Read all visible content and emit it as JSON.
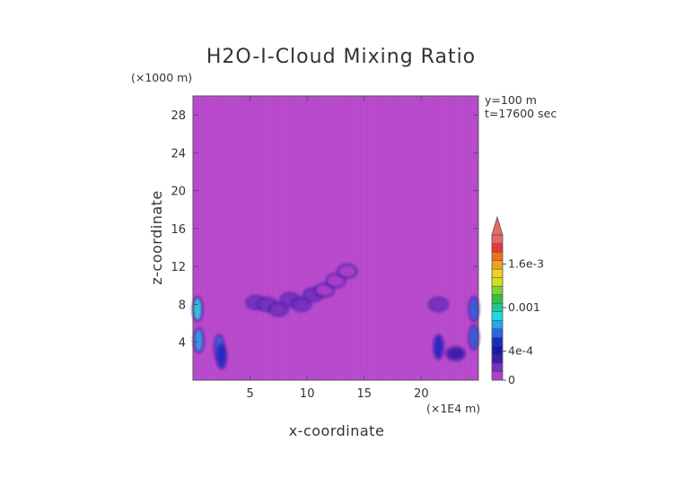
{
  "chart_data": {
    "type": "heatmap",
    "title": "H2O-I-Cloud Mixing Ratio",
    "xlabel": "x-coordinate",
    "ylabel": "z-coordinate",
    "x_unit": "(×1E4 m)",
    "y_unit": "(×1000 m)",
    "annotations": [
      "y=100 m",
      "t=17600 sec"
    ],
    "xlim": [
      0,
      25
    ],
    "ylim": [
      0,
      30
    ],
    "x_ticks": [
      5,
      10,
      15,
      20
    ],
    "y_ticks": [
      4,
      8,
      12,
      16,
      20,
      24,
      28
    ],
    "colorbar": {
      "min": 0,
      "max": 0.002,
      "tick_labels": [
        "0",
        "4e-4",
        "0.001",
        "1.6e-3"
      ],
      "tick_values": [
        0,
        0.0004,
        0.001,
        0.0016
      ],
      "colors": [
        "#b040c8",
        "#7a30c0",
        "#3c1ea8",
        "#1a1aa0",
        "#1c2ac8",
        "#2a68e0",
        "#22a8e8",
        "#20d8e0",
        "#20c890",
        "#30c040",
        "#80d030",
        "#d0e020",
        "#f0d020",
        "#f0a020",
        "#f07020",
        "#e83838",
        "#e86868"
      ],
      "extend": "max"
    },
    "features": [
      {
        "x": 0.4,
        "z": 7.5,
        "value": 0.0009
      },
      {
        "x": 0.5,
        "z": 4.2,
        "value": 0.0008
      },
      {
        "x": 2.3,
        "z": 3.5,
        "value": 0.0006
      },
      {
        "x": 2.5,
        "z": 2.5,
        "value": 0.0005
      },
      {
        "x": 5.5,
        "z": 8.2,
        "value": 0.0002
      },
      {
        "x": 6.5,
        "z": 8.0,
        "value": 0.0002
      },
      {
        "x": 7.5,
        "z": 7.5,
        "value": 0.0002
      },
      {
        "x": 8.5,
        "z": 8.5,
        "value": 0.00015
      },
      {
        "x": 9.5,
        "z": 8.0,
        "value": 0.0002
      },
      {
        "x": 10.5,
        "z": 9.0,
        "value": 0.00015
      },
      {
        "x": 11.5,
        "z": 9.5,
        "value": 0.0001
      },
      {
        "x": 12.5,
        "z": 10.5,
        "value": 0.0001
      },
      {
        "x": 13.5,
        "z": 11.5,
        "value": 8e-05
      },
      {
        "x": 21.5,
        "z": 8.0,
        "value": 0.0002
      },
      {
        "x": 21.5,
        "z": 3.5,
        "value": 0.0005
      },
      {
        "x": 23.0,
        "z": 2.8,
        "value": 0.0003
      },
      {
        "x": 24.6,
        "z": 7.5,
        "value": 0.0007
      },
      {
        "x": 24.6,
        "z": 4.5,
        "value": 0.0006
      }
    ]
  }
}
